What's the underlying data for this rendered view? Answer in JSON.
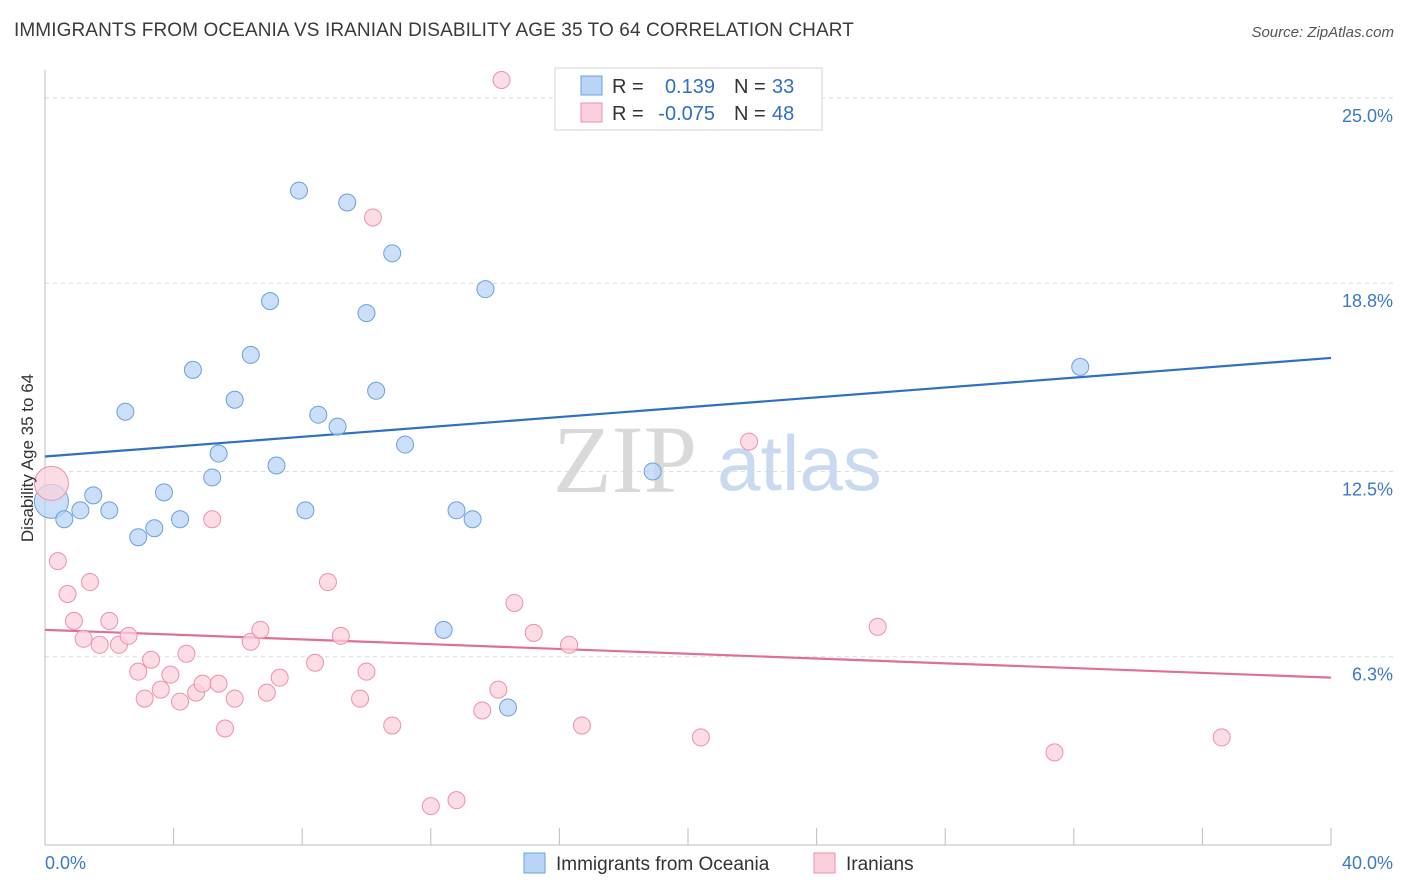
{
  "header": {
    "title": "IMMIGRANTS FROM OCEANIA VS IRANIAN DISABILITY AGE 35 TO 64 CORRELATION CHART",
    "source": "Source: ZipAtlas.com"
  },
  "watermark": {
    "part1": "ZIP",
    "part2": "atlas"
  },
  "legend": {
    "rows": [
      {
        "r_label": "R =",
        "r_value": "0.139",
        "n_label": "N =",
        "n_value": "33",
        "color": "#b9d4f5",
        "stroke": "#6a9fe0"
      },
      {
        "r_label": "R =",
        "r_value": "-0.075",
        "n_label": "N =",
        "n_value": "48",
        "color": "#fbd0dc",
        "stroke": "#ee90ac"
      }
    ]
  },
  "bottom_legend": {
    "items": [
      {
        "label": "Immigrants from Oceania",
        "color": "#b9d4f5",
        "stroke": "#6a9fe0"
      },
      {
        "label": "Iranians",
        "color": "#fbd0dc",
        "stroke": "#ee90ac"
      }
    ]
  },
  "chart_data": {
    "type": "scatter",
    "title": "IMMIGRANTS FROM OCEANIA VS IRANIAN DISABILITY AGE 35 TO 64 CORRELATION CHART",
    "xlabel": "",
    "ylabel": "Disability Age 35 to 64",
    "xlim": [
      0,
      40
    ],
    "ylim": [
      0,
      25.6
    ],
    "x_tick_labels": [
      "0.0%",
      "40.0%"
    ],
    "y_ticks": [
      6.3,
      12.5,
      18.8,
      25.0
    ],
    "y_tick_labels": [
      "6.3%",
      "12.5%",
      "18.8%",
      "25.0%"
    ],
    "grid": true,
    "legend_position": "top-center",
    "series": [
      {
        "name": "Immigrants from Oceania",
        "color": "#6a9fe0",
        "fill": "#b9d4f5",
        "trend": {
          "x": [
            0,
            40
          ],
          "y": [
            13.0,
            16.3
          ],
          "color": "#2f6fc4"
        },
        "points": [
          {
            "x": 0.2,
            "y": 11.5,
            "big": true
          },
          {
            "x": 0.6,
            "y": 10.9
          },
          {
            "x": 1.1,
            "y": 11.2
          },
          {
            "x": 1.5,
            "y": 11.7
          },
          {
            "x": 2.0,
            "y": 11.2
          },
          {
            "x": 2.5,
            "y": 14.5
          },
          {
            "x": 2.9,
            "y": 10.3
          },
          {
            "x": 3.4,
            "y": 10.6
          },
          {
            "x": 3.7,
            "y": 11.8
          },
          {
            "x": 4.2,
            "y": 10.9
          },
          {
            "x": 4.6,
            "y": 15.9
          },
          {
            "x": 5.2,
            "y": 12.3
          },
          {
            "x": 5.4,
            "y": 13.1
          },
          {
            "x": 5.9,
            "y": 14.9
          },
          {
            "x": 6.4,
            "y": 16.4
          },
          {
            "x": 7.0,
            "y": 18.2
          },
          {
            "x": 7.2,
            "y": 12.7
          },
          {
            "x": 7.9,
            "y": 21.9
          },
          {
            "x": 8.1,
            "y": 11.2
          },
          {
            "x": 8.5,
            "y": 14.4
          },
          {
            "x": 9.1,
            "y": 14.0
          },
          {
            "x": 9.4,
            "y": 21.5
          },
          {
            "x": 10.0,
            "y": 17.8
          },
          {
            "x": 10.3,
            "y": 15.2
          },
          {
            "x": 10.8,
            "y": 19.8
          },
          {
            "x": 11.2,
            "y": 13.4
          },
          {
            "x": 12.4,
            "y": 7.2
          },
          {
            "x": 12.8,
            "y": 11.2
          },
          {
            "x": 13.3,
            "y": 10.9
          },
          {
            "x": 13.7,
            "y": 18.6
          },
          {
            "x": 14.4,
            "y": 4.6
          },
          {
            "x": 18.9,
            "y": 12.5
          },
          {
            "x": 32.2,
            "y": 16.0
          }
        ]
      },
      {
        "name": "Iranians",
        "color": "#ee90ac",
        "fill": "#fbd0dc",
        "trend": {
          "x": [
            0,
            40
          ],
          "y": [
            7.2,
            5.6
          ],
          "color": "#e06f97"
        },
        "points": [
          {
            "x": 0.2,
            "y": 12.1,
            "big": true
          },
          {
            "x": 0.4,
            "y": 9.5
          },
          {
            "x": 0.7,
            "y": 8.4
          },
          {
            "x": 0.9,
            "y": 7.5
          },
          {
            "x": 1.2,
            "y": 6.9
          },
          {
            "x": 1.4,
            "y": 8.8
          },
          {
            "x": 1.7,
            "y": 6.7
          },
          {
            "x": 2.0,
            "y": 7.5
          },
          {
            "x": 2.3,
            "y": 6.7
          },
          {
            "x": 2.6,
            "y": 7.0
          },
          {
            "x": 2.9,
            "y": 5.8
          },
          {
            "x": 3.1,
            "y": 4.9
          },
          {
            "x": 3.3,
            "y": 6.2
          },
          {
            "x": 3.6,
            "y": 5.2
          },
          {
            "x": 3.9,
            "y": 5.7
          },
          {
            "x": 4.2,
            "y": 4.8
          },
          {
            "x": 4.4,
            "y": 6.4
          },
          {
            "x": 4.7,
            "y": 5.1
          },
          {
            "x": 4.9,
            "y": 5.4
          },
          {
            "x": 5.2,
            "y": 10.9
          },
          {
            "x": 5.4,
            "y": 5.4
          },
          {
            "x": 5.6,
            "y": 3.9
          },
          {
            "x": 5.9,
            "y": 4.9
          },
          {
            "x": 6.4,
            "y": 6.8
          },
          {
            "x": 6.7,
            "y": 7.2
          },
          {
            "x": 6.9,
            "y": 5.1
          },
          {
            "x": 7.3,
            "y": 5.6
          },
          {
            "x": 8.4,
            "y": 6.1
          },
          {
            "x": 8.8,
            "y": 8.8
          },
          {
            "x": 9.2,
            "y": 7.0
          },
          {
            "x": 9.8,
            "y": 4.9
          },
          {
            "x": 10.0,
            "y": 5.8
          },
          {
            "x": 10.2,
            "y": 21.0
          },
          {
            "x": 10.8,
            "y": 4.0
          },
          {
            "x": 12.0,
            "y": 1.3
          },
          {
            "x": 12.8,
            "y": 1.5
          },
          {
            "x": 13.6,
            "y": 4.5
          },
          {
            "x": 14.1,
            "y": 5.2
          },
          {
            "x": 14.2,
            "y": 25.6
          },
          {
            "x": 14.6,
            "y": 8.1
          },
          {
            "x": 15.2,
            "y": 7.1
          },
          {
            "x": 16.3,
            "y": 6.7
          },
          {
            "x": 16.7,
            "y": 4.0
          },
          {
            "x": 20.4,
            "y": 3.6
          },
          {
            "x": 21.9,
            "y": 13.5
          },
          {
            "x": 25.9,
            "y": 7.3
          },
          {
            "x": 31.4,
            "y": 3.1
          },
          {
            "x": 36.6,
            "y": 3.6
          }
        ]
      }
    ]
  }
}
